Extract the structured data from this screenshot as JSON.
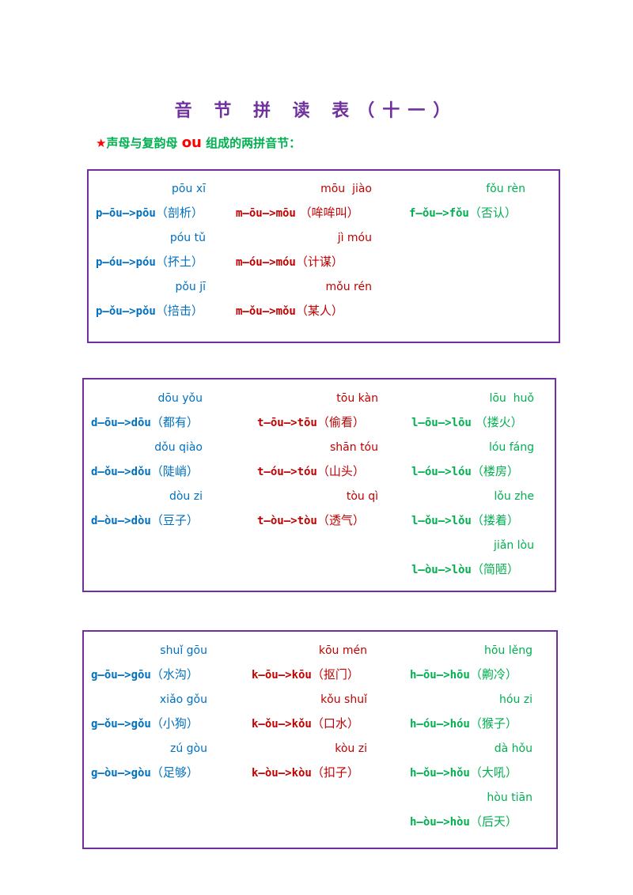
{
  "title": "音 节 拼 读 表（十一）",
  "subtitle": {
    "star": "★",
    "prefix": "声母与复韵母 ",
    "ou": "ou",
    "suffix": " 组成的两拼音节："
  },
  "box1": {
    "col1": [
      {
        "py": "pōu xī",
        "sp": "p—ōu—>pōu",
        "w": "（剖析）"
      },
      {
        "py": "póu tǔ",
        "sp": "p—óu—>póu",
        "w": "（抔土）"
      },
      {
        "py": "pǒu jī",
        "sp": "p—ǒu—>pǒu",
        "w": "（掊击）"
      }
    ],
    "col2": [
      {
        "py": "mōu  jiào",
        "sp": "m—ōu—>mōu",
        "w": " （哞哞叫）"
      },
      {
        "py": "jì móu",
        "sp": "m—óu—>móu",
        "w": "（计谋）"
      },
      {
        "py": "mǒu rén",
        "sp": "m—ǒu—>mǒu",
        "w": "（某人）"
      }
    ],
    "col3": [
      {
        "py": "fǒu rèn",
        "sp": "f—ǒu—>fǒu",
        "w": "（否认）"
      }
    ]
  },
  "box2": {
    "col1": [
      {
        "py": "dōu yǒu",
        "sp": "d—ōu—>dōu",
        "w": "（都有）"
      },
      {
        "py": "dǒu qiào",
        "sp": "d—ǒu—>dǒu",
        "w": "（陡峭）"
      },
      {
        "py": "dòu zi",
        "sp": "d—òu—>dòu",
        "w": "（豆子）"
      }
    ],
    "col2": [
      {
        "py": "tōu kàn",
        "sp": "t—ōu—>tōu",
        "w": "（偷看）"
      },
      {
        "py": "shān tóu",
        "sp": "t—óu—>tóu",
        "w": "（山头）"
      },
      {
        "py": "tòu qì",
        "sp": "t—òu—>tòu",
        "w": "（透气）"
      }
    ],
    "col3": [
      {
        "py": "lōu  huǒ",
        "sp": "l—ōu—>lōu",
        "w": " （搂火）"
      },
      {
        "py": "lóu fáng",
        "sp": "l—óu—>lóu",
        "w": "（楼房）"
      },
      {
        "py": "lǒu zhe",
        "sp": "l—ǒu—>lǒu",
        "w": "（搂着）"
      },
      {
        "py": "jiǎn lòu",
        "sp": "l—òu—>lòu",
        "w": "（简陋）"
      }
    ]
  },
  "box3": {
    "col1": [
      {
        "py": "shuǐ gōu",
        "sp": "g—ōu—>gōu",
        "w": "（水沟）"
      },
      {
        "py": "xiǎo gǒu",
        "sp": "g—ǒu—>gǒu",
        "w": "（小狗）"
      },
      {
        "py": "zú gòu",
        "sp": "g—òu—>gòu",
        "w": "（足够）"
      }
    ],
    "col2": [
      {
        "py": "kōu mén",
        "sp": "k—ōu—>kōu",
        "w": "（抠门）"
      },
      {
        "py": "kǒu shuǐ",
        "sp": "k—ǒu—>kǒu",
        "w": "（口水）"
      },
      {
        "py": "kòu zi",
        "sp": "k—òu—>kòu",
        "w": "（扣子）"
      }
    ],
    "col3": [
      {
        "py": "hōu lěng",
        "sp": "h—ōu—>hōu",
        "w": "（齁冷）"
      },
      {
        "py": "hóu zi",
        "sp": "h—óu—>hóu",
        "w": "（猴子）"
      },
      {
        "py": "dà hǒu",
        "sp": "h—ǒu—>hǒu",
        "w": "（大吼）"
      },
      {
        "py": "hòu tiān",
        "sp": "h—òu—>hòu",
        "w": "（后天）"
      }
    ]
  }
}
